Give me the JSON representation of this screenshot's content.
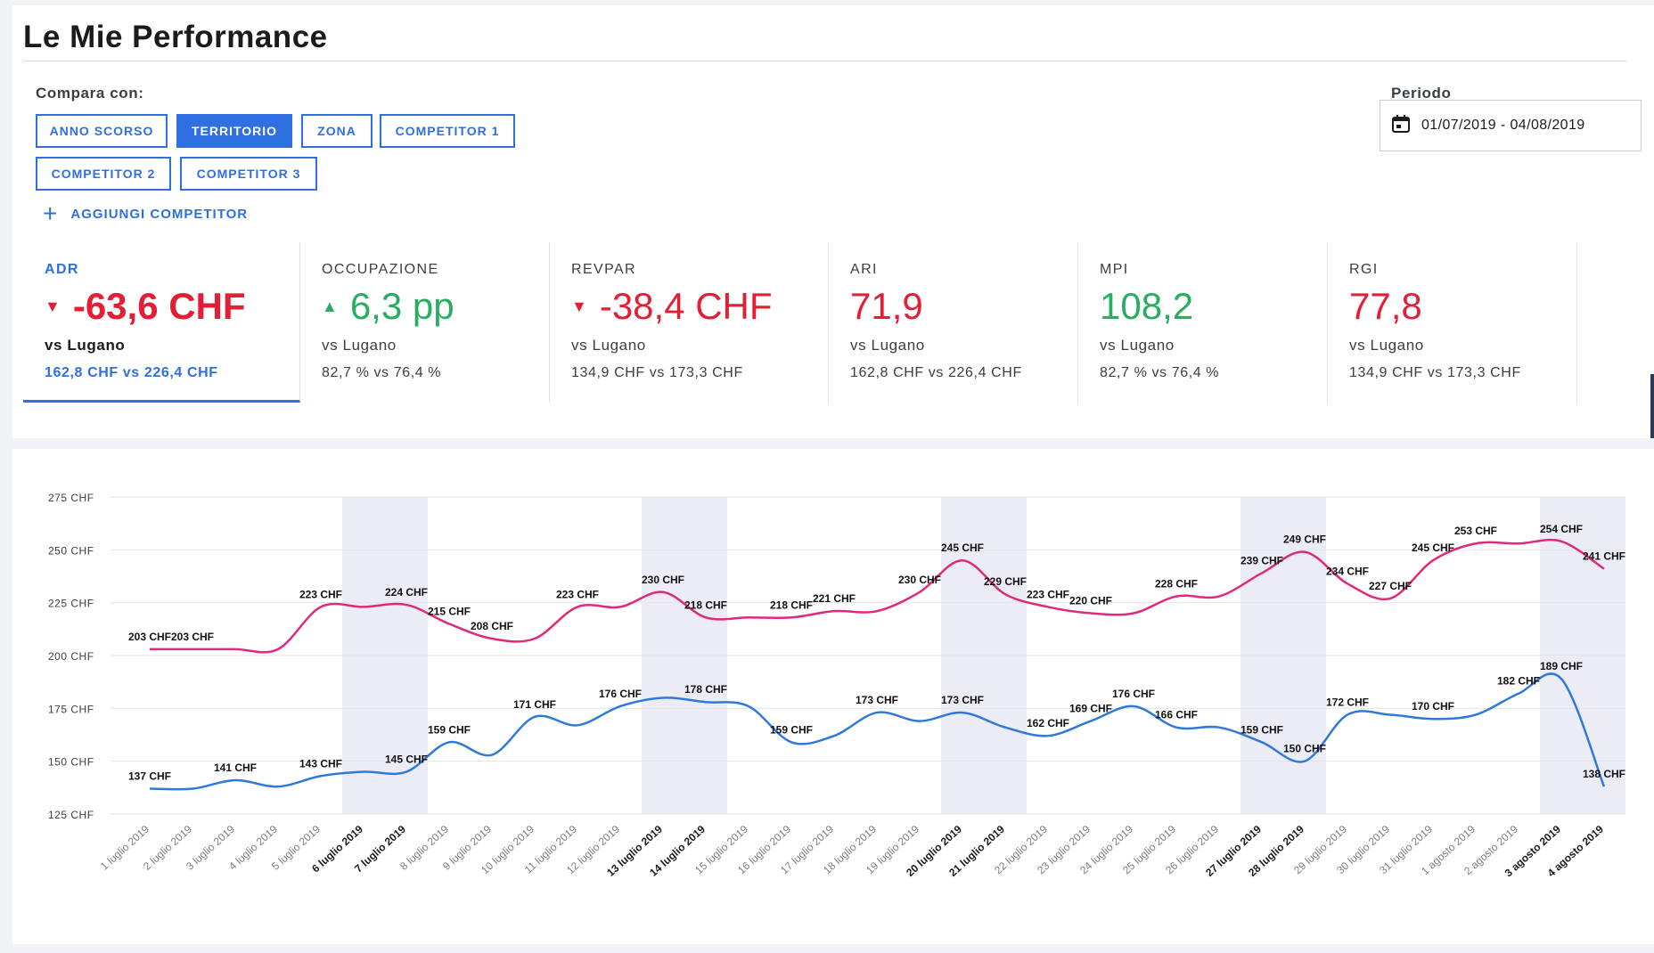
{
  "header": {
    "title": "Le Mie Performance"
  },
  "compare": {
    "label": "Compara con:",
    "buttons": [
      {
        "label": "ANNO SCORSO",
        "active": false
      },
      {
        "label": "TERRITORIO",
        "active": true
      },
      {
        "label": "ZONA",
        "active": false
      },
      {
        "label": "COMPETITOR 1",
        "active": false
      },
      {
        "label": "COMPETITOR 2",
        "active": false
      },
      {
        "label": "COMPETITOR 3",
        "active": false
      }
    ],
    "add_label": "AGGIUNGI COMPETITOR"
  },
  "period": {
    "label": "Periodo",
    "value": "01/07/2019 - 04/08/2019",
    "icon": "calendar-icon"
  },
  "kpis": [
    {
      "name": "ADR",
      "value": "-63,6 CHF",
      "trend": "down",
      "vs": "vs Lugano",
      "compare": "162,8 CHF vs 226,4 CHF"
    },
    {
      "name": "OCCUPAZIONE",
      "value": "6,3 pp",
      "trend": "up",
      "vs": "vs Lugano",
      "compare": "82,7 % vs 76,4 %"
    },
    {
      "name": "REVPAR",
      "value": "-38,4 CHF",
      "trend": "down",
      "vs": "vs Lugano",
      "compare": "134,9 CHF vs 173,3 CHF"
    },
    {
      "name": "ARI",
      "value": "71,9",
      "trend": "none",
      "vs": "vs Lugano",
      "compare": "162,8 CHF vs 226,4 CHF"
    },
    {
      "name": "MPI",
      "value": "108,2",
      "trend": "none",
      "vs": "vs Lugano",
      "compare": "82,7 % vs 76,4 %"
    },
    {
      "name": "RGI",
      "value": "77,8",
      "trend": "none",
      "vs": "vs Lugano",
      "compare": "134,9 CHF vs 173,3 CHF"
    }
  ],
  "colors": {
    "accent": "#2f6fdf",
    "negative": "#e21f35",
    "positive": "#27ae60",
    "series_pink": "#e0287d",
    "series_blue": "#2f7ad9",
    "weekend_band": "#ececf7"
  },
  "chart_data": {
    "type": "line",
    "ylim": [
      125,
      275
    ],
    "yticks": [
      "125 CHF",
      "150 CHF",
      "175 CHF",
      "200 CHF",
      "225 CHF",
      "250 CHF",
      "275 CHF"
    ],
    "ytick_values": [
      125,
      150,
      175,
      200,
      225,
      250,
      275
    ],
    "categories": [
      "1 luglio 2019",
      "2 luglio 2019",
      "3 luglio 2019",
      "4 luglio 2019",
      "5 luglio 2019",
      "6 luglio 2019",
      "7 luglio 2019",
      "8 luglio 2019",
      "9 luglio 2019",
      "10 luglio 2019",
      "11 luglio 2019",
      "12 luglio 2019",
      "13 luglio 2019",
      "14 luglio 2019",
      "15 luglio 2019",
      "16 luglio 2019",
      "17 luglio 2019",
      "18 luglio 2019",
      "19 luglio 2019",
      "20 luglio 2019",
      "21 luglio 2019",
      "22 luglio 2019",
      "23 luglio 2019",
      "24 luglio 2019",
      "25 luglio 2019",
      "26 luglio 2019",
      "27 luglio 2019",
      "28 luglio 2019",
      "29 luglio 2019",
      "30 luglio 2019",
      "31 luglio 2019",
      "1 agosto 2019",
      "2 agosto 2019",
      "3 agosto 2019",
      "4 agosto 2019"
    ],
    "weekends": [
      5,
      6,
      12,
      13,
      19,
      20,
      26,
      27,
      33,
      34
    ],
    "series": [
      {
        "values": [
          203,
          203,
          203,
          203,
          223,
          223,
          224,
          215,
          208,
          208,
          223,
          223,
          230,
          218,
          218,
          218,
          221,
          221,
          230,
          245,
          229,
          223,
          220,
          220,
          228,
          228,
          239,
          249,
          234,
          227,
          245,
          253,
          253,
          254,
          241
        ],
        "labels": [
          "203 CHF",
          "203 CHF",
          "",
          "",
          "223 CHF",
          "",
          "224 CHF",
          "215 CHF",
          "208 CHF",
          "",
          "223 CHF",
          "",
          "230 CHF",
          "218 CHF",
          "",
          "218 CHF",
          "221 CHF",
          "",
          "230 CHF",
          "245 CHF",
          "229 CHF",
          "223 CHF",
          "220 CHF",
          "",
          "228 CHF",
          "",
          "239 CHF",
          "249 CHF",
          "234 CHF",
          "227 CHF",
          "245 CHF",
          "253 CHF",
          "",
          "254 CHF",
          "241 CHF"
        ]
      },
      {
        "values": [
          137,
          137,
          141,
          138,
          143,
          145,
          145,
          159,
          153,
          171,
          167,
          176,
          180,
          178,
          176,
          159,
          162,
          173,
          169,
          173,
          166,
          162,
          169,
          176,
          166,
          166,
          159,
          150,
          172,
          172,
          170,
          172,
          182,
          189,
          138
        ],
        "labels": [
          "137 CHF",
          "",
          "141 CHF",
          "",
          "143 CHF",
          "",
          "145 CHF",
          "159 CHF",
          "",
          "171 CHF",
          "",
          "176 CHF",
          "",
          "178 CHF",
          "",
          "159 CHF",
          "",
          "173 CHF",
          "",
          "173 CHF",
          "",
          "162 CHF",
          "169 CHF",
          "176 CHF",
          "166 CHF",
          "",
          "159 CHF",
          "150 CHF",
          "172 CHF",
          "",
          "170 CHF",
          "",
          "182 CHF",
          "189 CHF",
          "138 CHF"
        ]
      }
    ]
  }
}
